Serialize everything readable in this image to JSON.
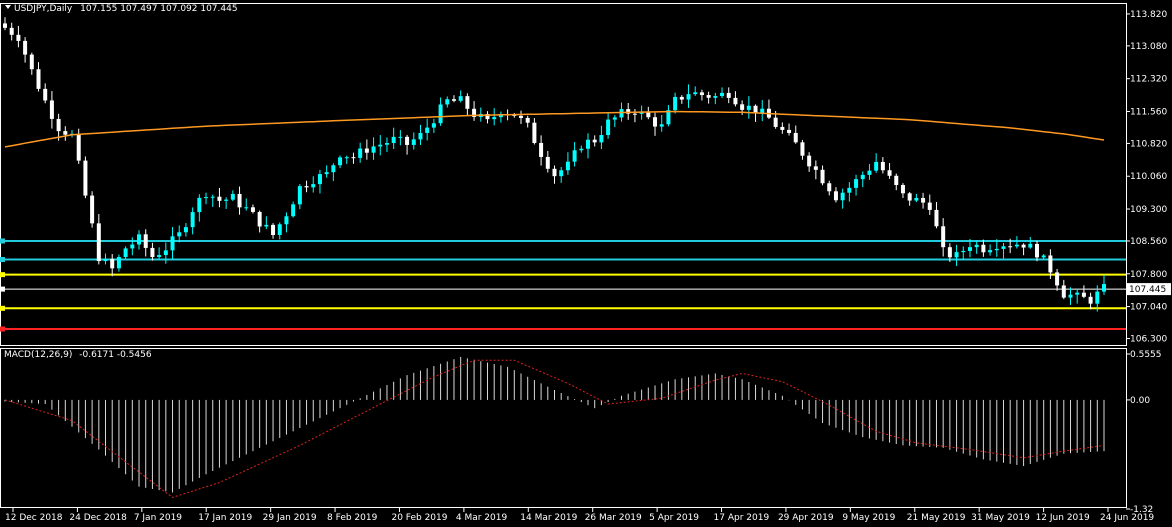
{
  "header": {
    "symbol_tf": "USDJPY,Daily",
    "ohlc": "107.155 107.497 107.092 107.445"
  },
  "macd_header": {
    "label": "MACD(12,26,9)",
    "values": "-0.6171 -0.5456"
  },
  "colors": {
    "background": "#000000",
    "axis": "#ffffff",
    "candle_up": "#00ffff",
    "candle_down": "#ffffff",
    "ma": "#ff9922",
    "level_cyan": "#22ccdd",
    "level_yellow": "#ffff00",
    "level_white": "#ffffff",
    "level_red": "#ff2222",
    "macd_hist": "#ffffff",
    "macd_signal": "#dd2222",
    "price_tag_bg": "#ffffff",
    "price_tag_text": "#000000"
  },
  "chart_data": {
    "type": "candlestick",
    "price_axis_ticks": [
      "113.820",
      "113.080",
      "112.320",
      "111.560",
      "110.820",
      "110.060",
      "109.300",
      "108.560",
      "107.800",
      "107.040",
      "106.300"
    ],
    "price_ylim": [
      106.15,
      114.05
    ],
    "current_price": "107.445",
    "date_labels": [
      "12 Dec 2018",
      "24 Dec 2018",
      "7 Jan 2019",
      "17 Jan 2019",
      "29 Jan 2019",
      "8 Feb 2019",
      "20 Feb 2019",
      "4 Mar 2019",
      "14 Mar 2019",
      "26 Mar 2019",
      "5 Apr 2019",
      "17 Apr 2019",
      "29 Apr 2019",
      "9 May 2019",
      "21 May 2019",
      "31 May 2019",
      "12 Jun 2019",
      "24 Jun 2019"
    ],
    "horizontal_levels": [
      {
        "price": 108.56,
        "color": "level_cyan"
      },
      {
        "price": 108.13,
        "color": "level_cyan"
      },
      {
        "price": 107.78,
        "color": "level_yellow"
      },
      {
        "price": 107.445,
        "color": "level_white"
      },
      {
        "price": 107.0,
        "color": "level_yellow"
      },
      {
        "price": 106.52,
        "color": "level_red"
      }
    ],
    "close_path": [
      [
        0,
        113.5
      ],
      [
        2,
        113.3
      ],
      [
        4,
        112.5
      ],
      [
        6,
        111.8
      ],
      [
        8,
        111.2
      ],
      [
        10,
        111.0
      ],
      [
        12,
        109.6
      ],
      [
        14,
        108.2
      ],
      [
        16,
        107.9
      ],
      [
        18,
        108.4
      ],
      [
        20,
        108.6
      ],
      [
        22,
        108.2
      ],
      [
        24,
        108.4
      ],
      [
        26,
        108.7
      ],
      [
        28,
        109.3
      ],
      [
        30,
        109.7
      ],
      [
        32,
        109.5
      ],
      [
        34,
        109.55
      ],
      [
        36,
        109.3
      ],
      [
        38,
        109.0
      ],
      [
        40,
        108.7
      ],
      [
        42,
        109.2
      ],
      [
        44,
        109.8
      ],
      [
        46,
        110.0
      ],
      [
        48,
        110.1
      ],
      [
        50,
        110.6
      ],
      [
        52,
        110.5
      ],
      [
        54,
        110.7
      ],
      [
        56,
        110.8
      ],
      [
        58,
        110.9
      ],
      [
        60,
        110.8
      ],
      [
        62,
        111.0
      ],
      [
        64,
        111.4
      ],
      [
        66,
        111.8
      ],
      [
        68,
        111.8
      ],
      [
        70,
        111.5
      ],
      [
        72,
        111.3
      ],
      [
        74,
        111.6
      ],
      [
        76,
        111.5
      ],
      [
        78,
        111.2
      ],
      [
        80,
        110.6
      ],
      [
        82,
        110.1
      ],
      [
        84,
        110.3
      ],
      [
        86,
        110.8
      ],
      [
        88,
        110.9
      ],
      [
        90,
        111.3
      ],
      [
        92,
        111.5
      ],
      [
        94,
        111.6
      ],
      [
        96,
        111.4
      ],
      [
        98,
        111.2
      ],
      [
        100,
        111.8
      ],
      [
        102,
        112.0
      ],
      [
        104,
        111.95
      ],
      [
        106,
        111.9
      ],
      [
        108,
        112.0
      ],
      [
        110,
        111.7
      ],
      [
        112,
        111.6
      ],
      [
        114,
        111.4
      ],
      [
        116,
        111.1
      ],
      [
        118,
        110.8
      ],
      [
        120,
        110.4
      ],
      [
        122,
        110.0
      ],
      [
        124,
        109.6
      ],
      [
        126,
        109.8
      ],
      [
        128,
        110.1
      ],
      [
        130,
        110.4
      ],
      [
        132,
        110.0
      ],
      [
        134,
        109.6
      ],
      [
        136,
        109.5
      ],
      [
        138,
        109.4
      ],
      [
        140,
        108.3
      ],
      [
        142,
        108.2
      ],
      [
        144,
        108.5
      ],
      [
        146,
        108.4
      ],
      [
        148,
        108.5
      ],
      [
        150,
        108.5
      ],
      [
        152,
        108.5
      ],
      [
        154,
        108.3
      ],
      [
        156,
        107.9
      ],
      [
        158,
        107.35
      ],
      [
        160,
        107.25
      ],
      [
        162,
        107.2
      ],
      [
        164,
        107.445
      ]
    ],
    "ma_path": [
      [
        0,
        110.74
      ],
      [
        10,
        111.02
      ],
      [
        30,
        111.22
      ],
      [
        50,
        111.35
      ],
      [
        70,
        111.47
      ],
      [
        90,
        111.53
      ],
      [
        100,
        111.56
      ],
      [
        110,
        111.54
      ],
      [
        120,
        111.47
      ],
      [
        135,
        111.37
      ],
      [
        150,
        111.18
      ],
      [
        158,
        111.04
      ],
      [
        164,
        110.9
      ]
    ],
    "macd": {
      "ticks": [
        "0.5555",
        "0.00",
        "-1.32"
      ],
      "ylim": [
        -1.32,
        0.5555
      ],
      "hist_path": [
        [
          0,
          -0.02
        ],
        [
          6,
          -0.05
        ],
        [
          14,
          -0.6
        ],
        [
          20,
          -1.05
        ],
        [
          25,
          -1.12
        ],
        [
          30,
          -0.9
        ],
        [
          40,
          -0.5
        ],
        [
          50,
          -0.1
        ],
        [
          60,
          0.3
        ],
        [
          68,
          0.52
        ],
        [
          75,
          0.4
        ],
        [
          82,
          0.12
        ],
        [
          88,
          -0.1
        ],
        [
          92,
          0.05
        ],
        [
          100,
          0.25
        ],
        [
          106,
          0.32
        ],
        [
          110,
          0.25
        ],
        [
          116,
          0.05
        ],
        [
          122,
          -0.28
        ],
        [
          128,
          -0.45
        ],
        [
          134,
          -0.55
        ],
        [
          140,
          -0.58
        ],
        [
          146,
          -0.72
        ],
        [
          152,
          -0.8
        ],
        [
          158,
          -0.65
        ],
        [
          164,
          -0.62
        ]
      ],
      "signal_path": [
        [
          0,
          0.0
        ],
        [
          10,
          -0.25
        ],
        [
          18,
          -0.75
        ],
        [
          25,
          -1.18
        ],
        [
          32,
          -1.0
        ],
        [
          44,
          -0.55
        ],
        [
          56,
          -0.05
        ],
        [
          64,
          0.28
        ],
        [
          70,
          0.48
        ],
        [
          76,
          0.48
        ],
        [
          84,
          0.2
        ],
        [
          90,
          -0.05
        ],
        [
          98,
          0.02
        ],
        [
          106,
          0.24
        ],
        [
          110,
          0.32
        ],
        [
          116,
          0.22
        ],
        [
          122,
          -0.02
        ],
        [
          130,
          -0.38
        ],
        [
          136,
          -0.52
        ],
        [
          144,
          -0.6
        ],
        [
          152,
          -0.7
        ],
        [
          158,
          -0.62
        ],
        [
          164,
          -0.55
        ]
      ]
    }
  }
}
